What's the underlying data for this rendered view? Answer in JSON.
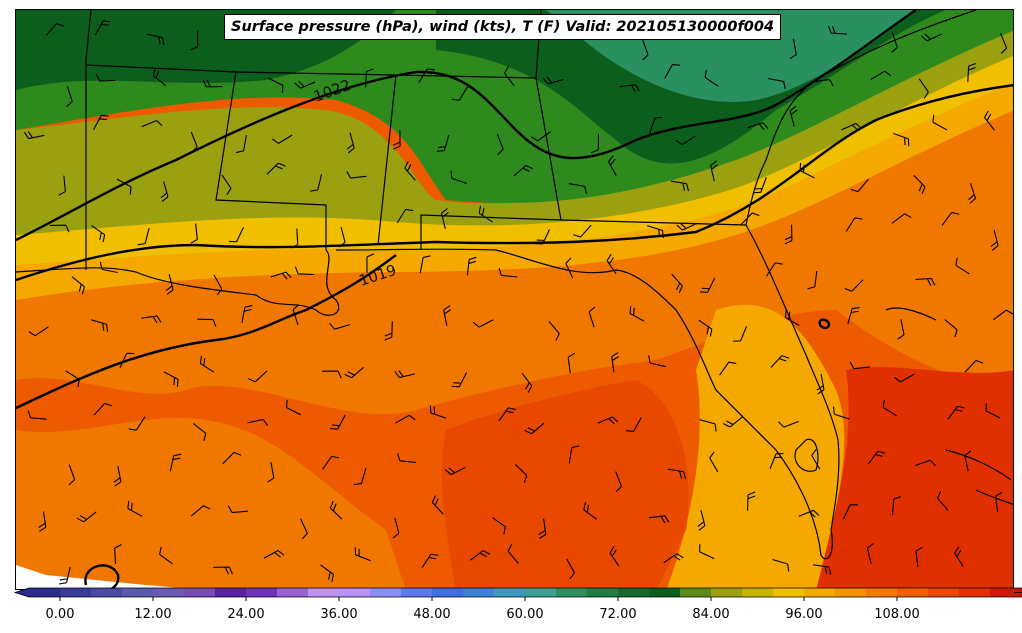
{
  "title": "Surface pressure (hPa), wind (kts), T (F) Valid: 202105130000f004",
  "isobars": [
    {
      "label": "1022"
    },
    {
      "label": "1019"
    }
  ],
  "colorbar": {
    "min": -4,
    "max": 120,
    "step": 4,
    "tick_labels": [
      "0.00",
      "12.00",
      "24.00",
      "36.00",
      "48.00",
      "60.00",
      "72.00",
      "84.00",
      "96.00",
      "108.00"
    ],
    "tick_values": [
      0,
      12,
      24,
      36,
      48,
      60,
      72,
      84,
      96,
      108
    ],
    "colors": [
      "#2c2c8c",
      "#3a3a9a",
      "#4a4aa4",
      "#5a5aae",
      "#6a5ab4",
      "#7a4ab8",
      "#5a20a8",
      "#7030c0",
      "#9a60d8",
      "#c090f0",
      "#b890ff",
      "#8c8cff",
      "#5a78f0",
      "#3c6ee8",
      "#3a82d8",
      "#3a9ac0",
      "#3aa090",
      "#2a9060",
      "#1e7e44",
      "#136a2a",
      "#0c5e1c",
      "#5a8a1a",
      "#9aa010",
      "#c8b400",
      "#f0c000",
      "#f5a800",
      "#f59000",
      "#f57800",
      "#f06000",
      "#e84800",
      "#e03000",
      "#d01808",
      "#b80808",
      "#a00808",
      "#8c0810",
      "#a00a3a",
      "#c00a5a",
      "#e0107a",
      "#f04aa0",
      "#f890d0"
    ]
  },
  "legend_colors": {
    "green_dark": "#0c5e1c",
    "green_mid": "#2f8a1e",
    "olive": "#9aa010",
    "yellow": "#f0c000",
    "amber": "#f5a800",
    "orange": "#f07800",
    "orange_red": "#ee5a00",
    "red": "#e03000"
  }
}
